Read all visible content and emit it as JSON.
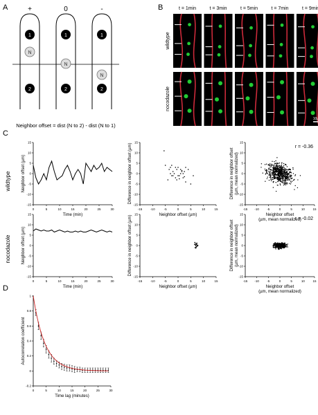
{
  "panels": {
    "a": "A",
    "b": "B",
    "c": "C",
    "d": "D"
  },
  "schematic": {
    "signs": [
      "+",
      "0",
      "-"
    ],
    "nucleus_label": "N",
    "neighbor_labels": [
      "1",
      "2"
    ],
    "formula": "Neighbor offset = dist (N to 2) - dist (N to 1)"
  },
  "micrographs": {
    "times": [
      "t = 1min",
      "t = 3min",
      "t = 5min",
      "t = 7min",
      "t = 9min"
    ],
    "rows": [
      "wildtype",
      "nocodazole"
    ],
    "scale_bar": "10µm"
  },
  "rows_c": [
    "wildtype",
    "nocodazole"
  ],
  "colors": {
    "line": "#000000",
    "fit": "#cc2222",
    "membrane": "#cc2a3a",
    "nucleus": "#22cc33"
  },
  "chart_data": [
    {
      "id": "wt-time",
      "type": "line",
      "xlabel": "Time (min)",
      "ylabel": "Neighbor offset (µm)",
      "xlim": [
        0,
        30
      ],
      "ylim": [
        -15,
        15
      ],
      "xticks": [
        0,
        5,
        10,
        15,
        20,
        25,
        30
      ],
      "yticks": [
        -15,
        -10,
        -5,
        0,
        5,
        10,
        15
      ],
      "x": [
        0,
        1,
        2,
        3,
        4,
        5,
        6,
        7,
        8,
        9,
        10,
        11,
        12,
        13,
        14,
        15,
        16,
        17,
        18,
        19,
        20,
        21,
        22,
        23,
        24,
        25,
        26,
        27,
        28,
        29,
        30
      ],
      "y": [
        4,
        -2,
        -5,
        -3,
        0,
        -3,
        3,
        6,
        1,
        -3,
        -2,
        -1,
        2,
        4,
        1,
        -3,
        0,
        2,
        0,
        -5,
        5,
        3,
        1,
        4,
        2,
        3,
        5,
        1,
        3,
        2,
        1
      ]
    },
    {
      "id": "wt-scatter",
      "type": "scatter",
      "xlabel": "Neighbor offset (µm)",
      "ylabel": "Difference in neighbor offset (µm)",
      "xlim": [
        -15,
        15
      ],
      "ylim": [
        -15,
        15
      ],
      "xticks": [
        -15,
        -10,
        -5,
        0,
        5,
        10,
        15
      ],
      "yticks": [
        -15,
        -10,
        -5,
        0,
        5,
        10,
        15
      ],
      "x": [
        -5.5,
        -5,
        -3.5,
        -3,
        -2.5,
        -2,
        -1.5,
        -1,
        -0.5,
        0,
        0.5,
        1,
        1.5,
        2,
        2.5,
        3,
        -4,
        -2,
        0,
        1,
        3,
        -1,
        2,
        4,
        -3,
        0.5,
        1.5,
        -0.5,
        2.5,
        5,
        6,
        -2.5
      ],
      "y": [
        11,
        4,
        2,
        3,
        -1,
        1,
        0,
        -2,
        2,
        3,
        -1,
        0,
        1,
        -2,
        1,
        3,
        -3,
        -1,
        -1,
        2,
        -4,
        3,
        0,
        2,
        0,
        -2.5,
        1.5,
        -3,
        -1.5,
        -5,
        -1,
        4
      ]
    },
    {
      "id": "wt-cloud",
      "type": "scatter",
      "xlabel": "Neighbor offset (µm, mean normalized)",
      "ylabel": "Difference in neighbor offset (µm, mean normalized)",
      "annotation": "r = -0.36",
      "xlim": [
        -15,
        15
      ],
      "ylim": [
        -15,
        15
      ],
      "xticks": [
        -15,
        -10,
        -5,
        0,
        5,
        10,
        15
      ],
      "yticks": [
        -15,
        -10,
        -5,
        0,
        5,
        10,
        15
      ],
      "cloud": {
        "n": 650,
        "center": [
          0,
          0
        ],
        "sd": [
          2.8,
          2.4
        ],
        "r": -0.36,
        "extent": [
          -9,
          10
        ]
      }
    },
    {
      "id": "noc-time",
      "type": "line",
      "xlabel": "Time (min)",
      "ylabel": "Neighbor offset (µm)",
      "xlim": [
        0,
        30
      ],
      "ylim": [
        -15,
        15
      ],
      "xticks": [
        0,
        5,
        10,
        15,
        20,
        25,
        30
      ],
      "yticks": [
        -15,
        -10,
        -5,
        0,
        5,
        10,
        15
      ],
      "x": [
        0,
        1,
        2,
        3,
        4,
        5,
        6,
        7,
        8,
        9,
        10,
        11,
        12,
        13,
        14,
        15,
        16,
        17,
        18,
        19,
        20,
        21,
        22,
        23,
        24,
        25,
        26,
        27,
        28,
        29,
        30
      ],
      "y": [
        7,
        8,
        7.5,
        7,
        7.5,
        7,
        7,
        7.5,
        6.5,
        7,
        7.5,
        7,
        6.5,
        7,
        6.5,
        6.5,
        7,
        6.5,
        7,
        6.5,
        6.5,
        7,
        7.5,
        7,
        6.5,
        7,
        7.5,
        7,
        6.5,
        7,
        6.5
      ]
    },
    {
      "id": "noc-scatter",
      "type": "scatter",
      "xlabel": "Neighbor offset (µm)",
      "ylabel": "Difference in neighbor offset (µm)",
      "xlim": [
        -15,
        15
      ],
      "ylim": [
        -15,
        15
      ],
      "xticks": [
        -15,
        -10,
        -5,
        0,
        5,
        10,
        15
      ],
      "yticks": [
        -15,
        -10,
        -5,
        0,
        5,
        10,
        15
      ],
      "x": [
        6.5,
        7,
        6.8,
        7.2,
        7.5,
        6.6,
        7.1,
        6.9,
        7.3,
        7.6,
        7.8,
        6.7,
        7.4,
        7,
        7.2
      ],
      "y": [
        0.5,
        0,
        1,
        -0.5,
        0.2,
        1.5,
        -0.8,
        0.3,
        0.8,
        -0.3,
        0.1,
        -1,
        1.2,
        -1.2,
        0.6
      ]
    },
    {
      "id": "noc-cloud",
      "type": "scatter",
      "xlabel": "Neighbor offset (µm, mean normalized)",
      "ylabel": "Difference in neighbor offset (µm, mean normalized)",
      "annotation": "r = -0.02",
      "xlim": [
        -15,
        15
      ],
      "ylim": [
        -15,
        15
      ],
      "xticks": [
        -15,
        -10,
        -5,
        0,
        5,
        10,
        15
      ],
      "yticks": [
        -15,
        -10,
        -5,
        0,
        5,
        10,
        15
      ],
      "cloud": {
        "n": 450,
        "center": [
          0,
          0
        ],
        "sd": [
          1.3,
          0.6
        ],
        "r": -0.02,
        "extent": [
          -3,
          4
        ]
      }
    },
    {
      "id": "acf",
      "type": "line",
      "xlabel": "Time lag (minutes)",
      "ylabel": "Autocorrelation coefficient",
      "xlim": [
        0,
        30
      ],
      "ylim": [
        -0.2,
        1
      ],
      "xticks": [
        0,
        5,
        10,
        15,
        20,
        25,
        30
      ],
      "yticks": [
        -0.2,
        0,
        0.2,
        0.4,
        0.6,
        0.8,
        1
      ],
      "x": [
        0,
        1,
        2,
        3,
        4,
        5,
        6,
        7,
        8,
        9,
        10,
        11,
        12,
        13,
        14,
        15,
        16,
        17,
        18,
        19,
        20,
        21,
        22,
        23,
        24,
        25,
        26,
        27,
        28,
        29
      ],
      "y": [
        1,
        0.78,
        0.6,
        0.47,
        0.37,
        0.29,
        0.22,
        0.17,
        0.13,
        0.1,
        0.08,
        0.06,
        0.05,
        0.04,
        0.04,
        0.03,
        0.02,
        0.02,
        0.02,
        0.01,
        0.01,
        0.01,
        0.01,
        0.01,
        0.01,
        0.01,
        0.01,
        0.01,
        0.01,
        0.01
      ],
      "err": [
        0,
        0.04,
        0.05,
        0.05,
        0.05,
        0.05,
        0.05,
        0.05,
        0.04,
        0.04,
        0.04,
        0.04,
        0.04,
        0.04,
        0.04,
        0.04,
        0.04,
        0.03,
        0.03,
        0.03,
        0.03,
        0.03,
        0.03,
        0.03,
        0.03,
        0.03,
        0.03,
        0.03,
        0.03,
        0.03
      ],
      "fit": {
        "type": "exponential",
        "tau": 4.5,
        "color": "#cc2222"
      }
    }
  ]
}
